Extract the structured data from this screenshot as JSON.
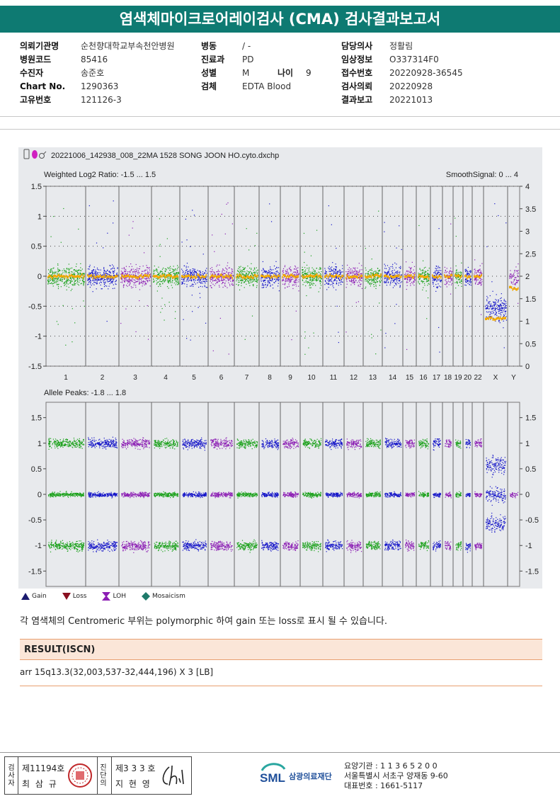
{
  "title": "염색체마이크로어레이검사 (CMA) 검사결과보고서",
  "info": {
    "col1": [
      {
        "label": "의뢰기관명",
        "value": "순천향대학교부속천안병원"
      },
      {
        "label": "병원코드",
        "value": "85416"
      },
      {
        "label": "수진자",
        "value": "송준호"
      },
      {
        "label": "Chart No.",
        "value": "1290363"
      },
      {
        "label": "고유번호",
        "value": "121126-3"
      }
    ],
    "col2": [
      {
        "label": "병동",
        "value": "/ -"
      },
      {
        "label": "진료과",
        "value": "PD"
      },
      {
        "label": "성별",
        "value": "M"
      },
      {
        "label": "검체",
        "value": "EDTA Blood"
      }
    ],
    "age_label": "나이",
    "age_value": "9",
    "col3": [
      {
        "label": "담당의사",
        "value": "정활림"
      },
      {
        "label": "임상정보",
        "value": "O337314F0"
      },
      {
        "label": "접수번호",
        "value": "20220928-36545"
      },
      {
        "label": "검사의뢰",
        "value": "20220928"
      },
      {
        "label": "결과보고",
        "value": "20221013"
      }
    ]
  },
  "plot": {
    "filename": "20221006_142938_008_22MA 1528 SONG JOON HO.cyto.dxchp",
    "top_label": "Weighted Log2 Ratio: -1.5 ... 1.5",
    "top_right_label": "SmoothSignal: 0 ... 4",
    "bottom_label": "Allele Peaks: -1.8 ... 1.8",
    "top_left_ticks": [
      "1.5",
      "1",
      "0.5",
      "0",
      "-0.5",
      "-1",
      "-1.5"
    ],
    "top_right_ticks": [
      "4",
      "3.5",
      "3",
      "2.5",
      "2",
      "1.5",
      "1",
      "0.5",
      "0"
    ],
    "bottom_left_ticks": [
      "1.5",
      "1",
      "0.5",
      "0",
      "-0.5",
      "-1",
      "-1.5"
    ],
    "bottom_right_ticks": [
      "1.5",
      "1",
      "0.5",
      "0",
      "-0.5",
      "-1",
      "-1.5"
    ],
    "chromosomes": [
      "1",
      "2",
      "3",
      "4",
      "5",
      "6",
      "7",
      "8",
      "9",
      "10",
      "11",
      "12",
      "13",
      "14",
      "15",
      "16",
      "17",
      "18",
      "19",
      "20",
      "22",
      "X",
      "Y"
    ],
    "colors": {
      "green": "#18a018",
      "blue": "#1414c8",
      "purple": "#8c1eb4",
      "orange": "#f0a800"
    }
  },
  "legend": {
    "gain": "Gain",
    "loss": "Loss",
    "loh": "LOH",
    "mosaicism": "Mosaicism"
  },
  "note": "각 염색체의 Centromeric 부위는 polymorphic 하여 gain 또는 loss로 표시 될 수 있습니다.",
  "result": {
    "heading": "RESULT(ISCN)",
    "value": "arr 15q13.3(32,003,537-32,444,196) X 3 [LB]"
  },
  "footer": {
    "sig1_role": "검사자",
    "sig1_no": "제11194호",
    "sig1_name": "최 삼 규",
    "sig2_role": "진단의",
    "sig2_no": "제3 3 3 호",
    "sig2_name": "지 현 영",
    "sml": "SML",
    "org_name": "삼광의료재단",
    "org_line1": "요양기관 : 1 1 3 6 5 2 0 0",
    "org_line2": "서울특별시 서초구 양재동 9-60",
    "org_line3": "대표번호 : 1661-5117"
  }
}
